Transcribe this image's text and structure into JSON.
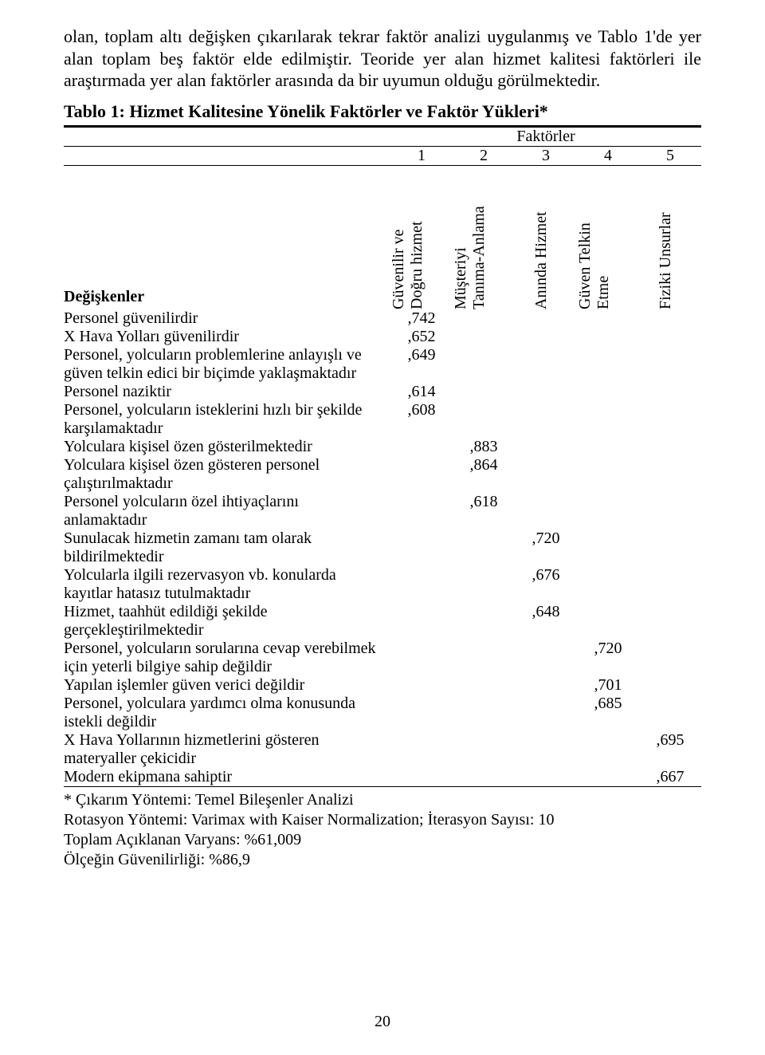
{
  "body_text": "olan, toplam altı değişken çıkarılarak tekrar faktör analizi uygulanmış ve Tablo 1'de yer alan toplam beş faktör elde edilmiştir. Teoride yer alan hizmet kalitesi faktörleri ile araştırmada yer alan faktörler arasında da bir uyumun olduğu görülmektedir.",
  "title": "Tablo 1: Hizmet Kalitesine Yönelik Faktörler ve Faktör Yükleri*",
  "table": {
    "factor_caption": "Faktörler",
    "col_numbers": [
      "1",
      "2",
      "3",
      "4",
      "5"
    ],
    "row_header": "Değişkenler",
    "column_labels": [
      "Güvenilir ve\nDoğru hizmet",
      "Müşteriyi\nTanıma-Anlama",
      "Anında Hizmet",
      "Güven Telkin\nEtme",
      "Fiziki Unsurlar"
    ],
    "rows": [
      {
        "label": "Personel güvenilirdir",
        "col": 1,
        "value": ",742"
      },
      {
        "label": "X Hava Yolları güvenilirdir",
        "col": 1,
        "value": ",652"
      },
      {
        "label": "Personel, yolcuların problemlerine anlayışlı ve güven telkin edici bir biçimde yaklaşmaktadır",
        "col": 1,
        "value": ",649"
      },
      {
        "label": "Personel naziktir",
        "col": 1,
        "value": ",614"
      },
      {
        "label": "Personel, yolcuların isteklerini hızlı bir şekilde karşılamaktadır",
        "col": 1,
        "value": ",608"
      },
      {
        "label": "Yolculara kişisel özen gösterilmektedir",
        "col": 2,
        "value": ",883"
      },
      {
        "label": "Yolculara kişisel özen gösteren personel çalıştırılmaktadır",
        "col": 2,
        "value": ",864"
      },
      {
        "label": "Personel yolcuların özel ihtiyaçlarını anlamaktadır",
        "col": 2,
        "value": ",618"
      },
      {
        "label": "Sunulacak hizmetin zamanı tam olarak bildirilmektedir",
        "col": 3,
        "value": ",720"
      },
      {
        "label": "Yolcularla ilgili rezervasyon vb. konularda kayıtlar hatasız tutulmaktadır",
        "col": 3,
        "value": ",676"
      },
      {
        "label": "Hizmet, taahhüt edildiği şekilde gerçekleştirilmektedir",
        "col": 3,
        "value": ",648"
      },
      {
        "label": "Personel, yolcuların sorularına cevap verebilmek için yeterli bilgiye sahip değildir",
        "col": 4,
        "value": ",720"
      },
      {
        "label": "Yapılan işlemler güven verici değildir",
        "col": 4,
        "value": ",701"
      },
      {
        "label": "Personel, yolculara yardımcı olma konusunda istekli değildir",
        "col": 4,
        "value": ",685"
      },
      {
        "label": "X Hava Yollarının hizmetlerini gösteren materyaller çekicidir",
        "col": 5,
        "value": ",695"
      },
      {
        "label": "Modern ekipmana sahiptir",
        "col": 5,
        "value": ",667"
      }
    ]
  },
  "notes": {
    "items": [
      "* Çıkarım Yöntemi: Temel Bileşenler Analizi",
      "Rotasyon Yöntemi: Varimax with Kaiser Normalization; İterasyon Sayısı: 10",
      "Toplam Açıklanan Varyans: %61,009",
      "Ölçeğin Güvenilirliği: %86,9"
    ]
  },
  "page_number": "20"
}
